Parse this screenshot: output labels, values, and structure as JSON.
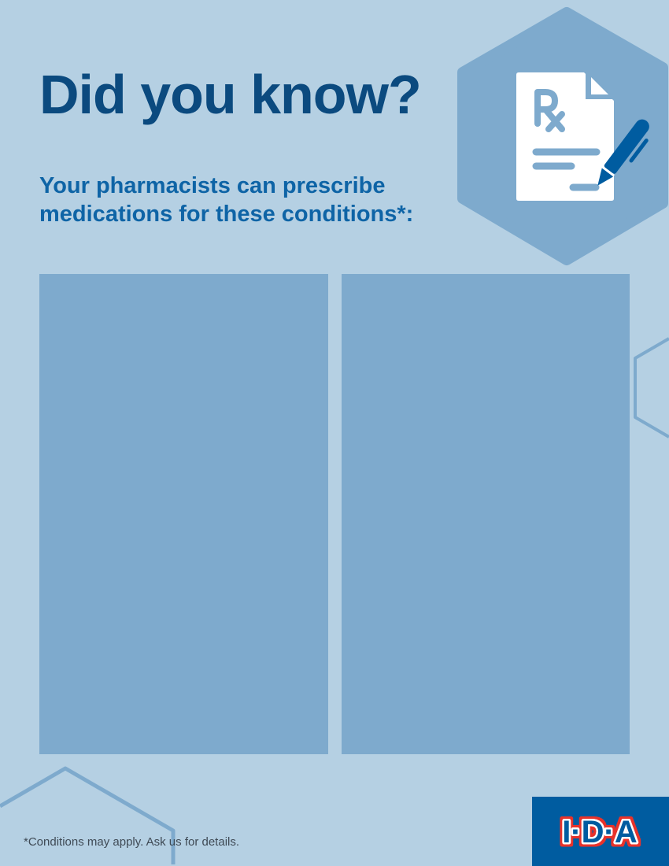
{
  "header": {
    "title": "Did you know?",
    "subtitle_line1": "Your pharmacists can prescribe",
    "subtitle_line2": "medications for these conditions*:"
  },
  "icon": "prescription-document-with-pen-icon",
  "footnote": "*Conditions may apply. Ask us for details.",
  "logo": {
    "text": "I·D·A"
  },
  "colors": {
    "background": "#b5d0e3",
    "panel": "#7eaacd",
    "title": "#0b4a7f",
    "subtitle": "#0e64a6",
    "brand": "#005ca0",
    "logo_red": "#e8322b"
  }
}
